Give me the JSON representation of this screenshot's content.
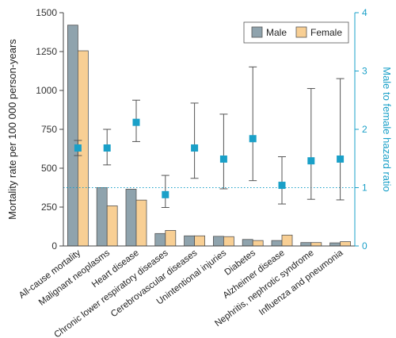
{
  "chart_data": {
    "type": "bar",
    "categories": [
      "All-cause mortality",
      "Malignant neoplasms",
      "Heart disease",
      "Chronic lower respiratory diseases",
      "Cerebrovascular diseases",
      "Unintentional injuries",
      "Diabetes",
      "Alzheimer disease",
      "Nephritis, nephrotic syndrome",
      "Influenza and pneumonia"
    ],
    "series": [
      {
        "name": "Male",
        "color": "#8fa3ad",
        "values": [
          1420,
          375,
          365,
          80,
          65,
          62,
          42,
          35,
          22,
          20
        ]
      },
      {
        "name": "Female",
        "color": "#f8cf94",
        "values": [
          1255,
          258,
          295,
          100,
          65,
          60,
          35,
          70,
          22,
          28
        ]
      }
    ],
    "hazard_ratio": {
      "color": "#1aa0c8",
      "values": [
        1.68,
        1.68,
        2.12,
        0.88,
        1.68,
        1.49,
        1.84,
        1.04,
        1.46,
        1.49
      ],
      "lower": [
        1.55,
        1.39,
        1.79,
        0.66,
        1.16,
        0.98,
        1.12,
        0.72,
        0.8,
        0.79
      ],
      "upper": [
        1.81,
        2.0,
        2.5,
        1.21,
        2.45,
        2.26,
        3.07,
        1.53,
        2.7,
        2.87
      ]
    },
    "reference_line": 1,
    "ylabel": "Mortality rate per 100 000 person-years",
    "ylabel_right": "Male to female hazard ratio",
    "ylim": [
      0,
      1500
    ],
    "ylim_right": [
      0,
      4
    ],
    "yticks": [
      "0",
      "250",
      "500",
      "750",
      "1000",
      "1250",
      "1500"
    ],
    "yticks_right": [
      "0",
      "1",
      "2",
      "3",
      "4"
    ],
    "legend_position": "top-right"
  }
}
